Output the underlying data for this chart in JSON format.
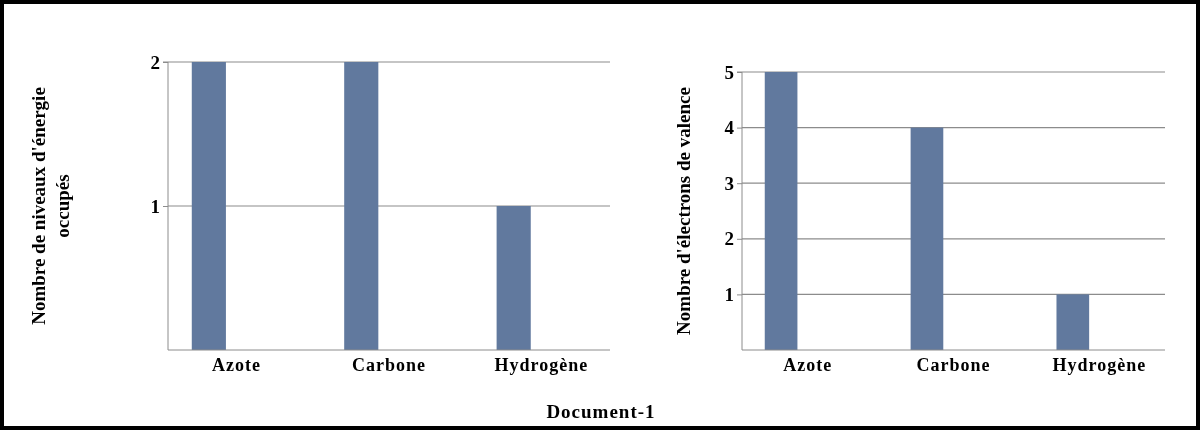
{
  "chart_data": [
    {
      "type": "bar",
      "ylabel": "Nombre de niveaux d'énergie occupés",
      "categories": [
        "Azote",
        "Carbone",
        "Hydrogène"
      ],
      "values": [
        2,
        2,
        1
      ],
      "color": "#61799e",
      "ylim": [
        0,
        2
      ],
      "yticks": [
        1,
        2
      ],
      "grid": "y",
      "annotations": [
        "Document-1"
      ]
    },
    {
      "type": "bar",
      "ylabel": "Nombre d'électrons de valence",
      "categories": [
        "Azote",
        "Carbone",
        "Hydrogène"
      ],
      "values": [
        5,
        4,
        1
      ],
      "color": "#61799e",
      "ylim": [
        0,
        5
      ],
      "yticks": [
        1,
        2,
        3,
        4,
        5
      ],
      "grid": "y"
    }
  ]
}
